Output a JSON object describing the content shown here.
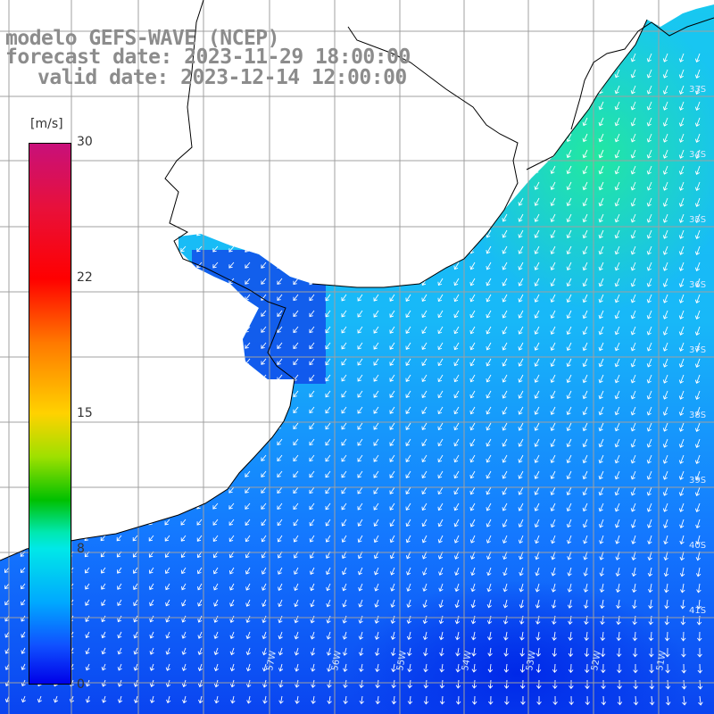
{
  "title": {
    "line1": "modelo GEFS-WAVE (NCEP)",
    "line2": "forecast date: 2023-11-29 18:00:00",
    "line3": "valid date: 2023-12-14 12:00:00"
  },
  "colorbar": {
    "unit": "[m/s]",
    "ticks": [
      "30",
      "22",
      "15",
      "8",
      "0"
    ],
    "min": 0,
    "max": 30,
    "colors": [
      "#0000e8",
      "#1050ff",
      "#00a8ff",
      "#00e8e8",
      "#00c000",
      "#9ee000",
      "#ffd200",
      "#ff7a00",
      "#ff0000",
      "#c8107a"
    ]
  },
  "axes": {
    "lon_labels": [
      "57W",
      "56W",
      "55W",
      "54W",
      "53W",
      "52W",
      "51W"
    ],
    "lat_labels": [
      "33S",
      "34S",
      "35S",
      "36S",
      "37S",
      "38S",
      "39S",
      "40S",
      "41S"
    ]
  },
  "field": {
    "variable": "wind speed and direction",
    "colors": {
      "land": "#ffffff",
      "grid": "#a0a0a0",
      "coast": "#000000",
      "arrow": "#ffffff",
      "low": "#0a3cf0",
      "mid": "#1496ff",
      "high": "#1ce8e8",
      "peak": "#22e88a"
    }
  }
}
